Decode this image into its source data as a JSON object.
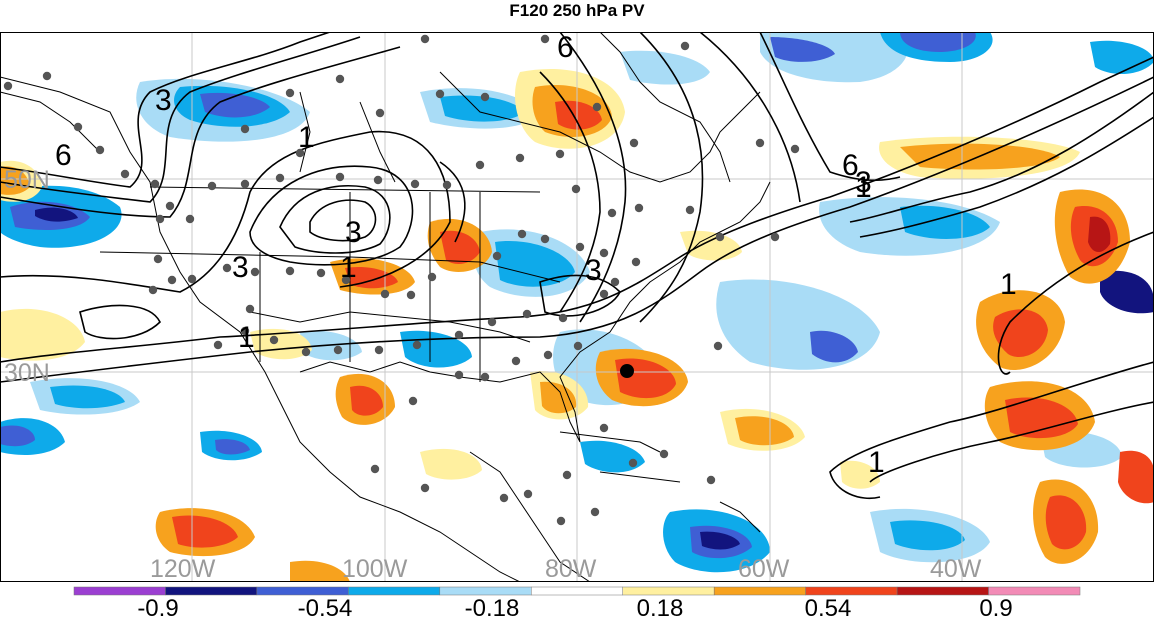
{
  "title": "F120 250 hPa PV",
  "lon_labels": [
    "120W",
    "100W",
    "80W",
    "60W",
    "40W"
  ],
  "lat_labels": [
    "50N",
    "30N"
  ],
  "contour_labels": [
    "3",
    "6",
    "1",
    "3",
    "1",
    "3",
    "1",
    "3",
    "6",
    "3",
    "1",
    "1",
    "1",
    "6"
  ],
  "colorbar": {
    "tick_labels": [
      "-0.9",
      "-0.54",
      "-0.18",
      "0.18",
      "0.54",
      "0.9"
    ],
    "colors": [
      "#9b3fd1",
      "#12147e",
      "#3f5fd4",
      "#0eaaea",
      "#a9dcf6",
      "#ffffff",
      "#fff0a0",
      "#f7a21e",
      "#f0441c",
      "#b71515",
      "#f28bb6"
    ]
  },
  "marker": {
    "description": "black dot",
    "color": "#000000"
  },
  "station_color": "#555555"
}
